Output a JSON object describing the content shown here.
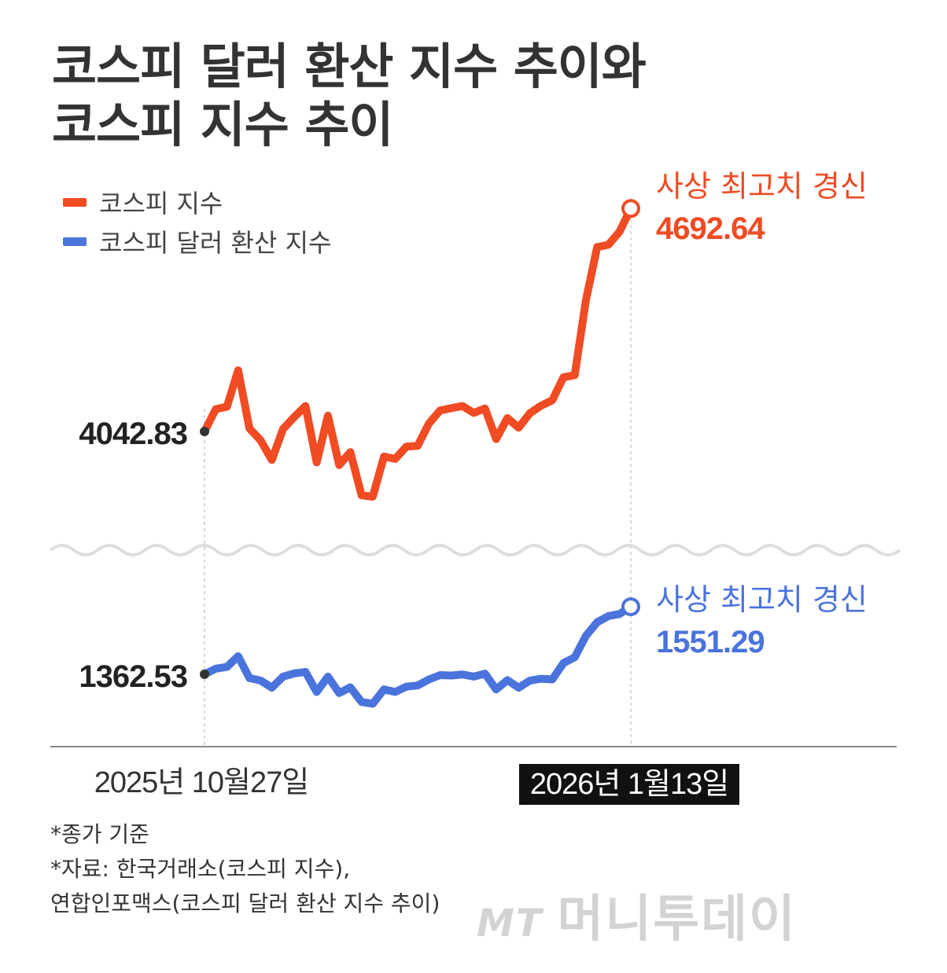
{
  "title_lines": [
    "코스피 달러 환산 지수 추이와",
    "코스피 지수 추이"
  ],
  "chart_data": {
    "type": "line",
    "title": "코스피 달러 환산 지수 추이와 코스피 지수 추이",
    "x_start_label": "2025년 10월27일",
    "x_end_label": "2026년 1월13일",
    "broken_axis": true,
    "legend_position": "top-left",
    "series": [
      {
        "name": "코스피 지수",
        "color": "#f04b23",
        "start_label": "4042.83",
        "end_label": "4692.64",
        "end_note": "사상 최고치 경신",
        "values": [
          4042.83,
          4108,
          4115,
          4221,
          4052,
          4017,
          3960,
          4050,
          4085,
          4117,
          3953,
          4089,
          3945,
          3983,
          3857,
          3853,
          3970,
          3963,
          3999,
          4001,
          4066,
          4104,
          4111,
          4117,
          4097,
          4110,
          4021,
          4082,
          4054,
          4096,
          4118,
          4134,
          4201,
          4207,
          4425,
          4580,
          4587,
          4625,
          4692.64
        ]
      },
      {
        "name": "코스피 달러 환산 지수",
        "color": "#4a73dc",
        "start_label": "1362.53",
        "end_label": "1551.29",
        "end_note": "사상 최고치 경신",
        "values": [
          1362.53,
          1378,
          1383,
          1413,
          1352,
          1345,
          1325,
          1356,
          1365,
          1369,
          1313,
          1356,
          1310,
          1326,
          1285,
          1280,
          1320,
          1313,
          1328,
          1331,
          1348,
          1360,
          1359,
          1362,
          1356,
          1364,
          1320,
          1346,
          1325,
          1345,
          1350,
          1348,
          1394,
          1410,
          1470,
          1508,
          1525,
          1531,
          1551.29
        ]
      }
    ]
  },
  "footnotes": [
    "*종가 기준",
    "*자료: 한국거래소(코스피 지수),",
    "연합인포맥스(코스피 달러 환산 지수 추이)"
  ],
  "watermark": {
    "logo": "MT",
    "text": "머니투데이"
  }
}
